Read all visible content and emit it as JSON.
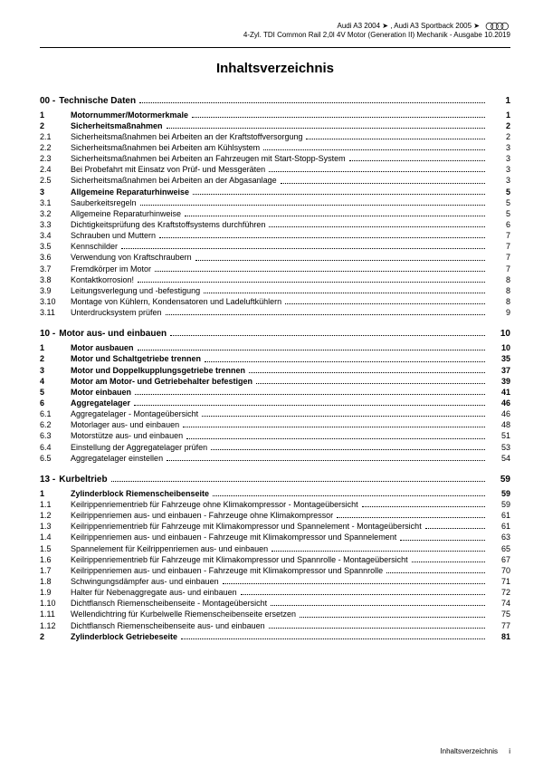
{
  "header": {
    "line1": "Audi A3 2004 ➤ , Audi A3 Sportback 2005 ➤",
    "line2": "4-Zyl. TDI Common Rail 2,0l 4V Motor (Generation II) Mechanik - Ausgabe 10.2019"
  },
  "title": "Inhaltsverzeichnis",
  "footer": {
    "label": "Inhaltsverzeichnis",
    "page": "i"
  },
  "sections": [
    {
      "head_num": "00 -",
      "head_title": "Technische Daten",
      "head_page": "1",
      "items": [
        {
          "n": "1",
          "t": "Motornummer/Motormerkmale",
          "p": "1",
          "b": true
        },
        {
          "n": "2",
          "t": "Sicherheitsmaßnahmen",
          "p": "2",
          "b": true
        },
        {
          "n": "2.1",
          "t": "Sicherheitsmaßnahmen bei Arbeiten an der Kraftstoffversorgung",
          "p": "2"
        },
        {
          "n": "2.2",
          "t": "Sicherheitsmaßnahmen bei Arbeiten am Kühlsystem",
          "p": "3"
        },
        {
          "n": "2.3",
          "t": "Sicherheitsmaßnahmen bei Arbeiten an Fahrzeugen mit Start-Stopp-System",
          "p": "3"
        },
        {
          "n": "2.4",
          "t": "Bei Probefahrt mit Einsatz von Prüf- und Messgeräten",
          "p": "3"
        },
        {
          "n": "2.5",
          "t": "Sicherheitsmaßnahmen bei Arbeiten an der Abgasanlage",
          "p": "3"
        },
        {
          "n": "3",
          "t": "Allgemeine Reparaturhinweise",
          "p": "5",
          "b": true
        },
        {
          "n": "3.1",
          "t": "Sauberkeitsregeln",
          "p": "5"
        },
        {
          "n": "3.2",
          "t": "Allgemeine Reparaturhinweise",
          "p": "5"
        },
        {
          "n": "3.3",
          "t": "Dichtigkeitsprüfung des Kraftstoffsystems durchführen",
          "p": "6"
        },
        {
          "n": "3.4",
          "t": "Schrauben und Muttern",
          "p": "7"
        },
        {
          "n": "3.5",
          "t": "Kennschilder",
          "p": "7"
        },
        {
          "n": "3.6",
          "t": "Verwendung von Kraftschraubern",
          "p": "7"
        },
        {
          "n": "3.7",
          "t": "Fremdkörper im Motor",
          "p": "7"
        },
        {
          "n": "3.8",
          "t": "Kontaktkorrosion!",
          "p": "8"
        },
        {
          "n": "3.9",
          "t": "Leitungsverlegung und -befestigung",
          "p": "8"
        },
        {
          "n": "3.10",
          "t": "Montage von Kühlern, Kondensatoren und Ladeluftkühlern",
          "p": "8"
        },
        {
          "n": "3.11",
          "t": "Unterdrucksystem prüfen",
          "p": "9"
        }
      ]
    },
    {
      "head_num": "10 -",
      "head_title": "Motor aus- und einbauen",
      "head_page": "10",
      "items": [
        {
          "n": "1",
          "t": "Motor ausbauen",
          "p": "10",
          "b": true
        },
        {
          "n": "2",
          "t": "Motor und Schaltgetriebe trennen",
          "p": "35",
          "b": true
        },
        {
          "n": "3",
          "t": "Motor und Doppelkupplungsgetriebe trennen",
          "p": "37",
          "b": true
        },
        {
          "n": "4",
          "t": "Motor am Motor- und Getriebehalter befestigen",
          "p": "39",
          "b": true
        },
        {
          "n": "5",
          "t": "Motor einbauen",
          "p": "41",
          "b": true
        },
        {
          "n": "6",
          "t": "Aggregatelager",
          "p": "46",
          "b": true
        },
        {
          "n": "6.1",
          "t": "Aggregatelager - Montageübersicht",
          "p": "46"
        },
        {
          "n": "6.2",
          "t": "Motorlager aus- und einbauen",
          "p": "48"
        },
        {
          "n": "6.3",
          "t": "Motorstütze aus- und einbauen",
          "p": "51"
        },
        {
          "n": "6.4",
          "t": "Einstellung der Aggregatelager prüfen",
          "p": "53"
        },
        {
          "n": "6.5",
          "t": "Aggregatelager einstellen",
          "p": "54"
        }
      ]
    },
    {
      "head_num": "13 -",
      "head_title": "Kurbeltrieb",
      "head_page": "59",
      "items": [
        {
          "n": "1",
          "t": "Zylinderblock Riemenscheibenseite",
          "p": "59",
          "b": true
        },
        {
          "n": "1.1",
          "t": "Keilrippenriementrieb für Fahrzeuge ohne Klimakompressor - Montageübersicht",
          "p": "59"
        },
        {
          "n": "1.2",
          "t": "Keilrippenriemen aus- und einbauen - Fahrzeuge ohne Klimakompressor",
          "p": "61"
        },
        {
          "n": "1.3",
          "t": "Keilrippenriementrieb für Fahrzeuge mit Klimakompressor und Spannelement - Montageübersicht",
          "p": "61",
          "wrap": true
        },
        {
          "n": "1.4",
          "t": "Keilrippenriemen aus- und einbauen - Fahrzeuge mit Klimakompressor und Spannelement",
          "p": "63",
          "wrap": true
        },
        {
          "n": "1.5",
          "t": "Spannelement für Keilrippenriemen aus- und einbauen",
          "p": "65"
        },
        {
          "n": "1.6",
          "t": "Keilrippenriementrieb für Fahrzeuge mit Klimakompressor und Spannrolle - Montageübersicht",
          "p": "67",
          "wrap": true
        },
        {
          "n": "1.7",
          "t": "Keilrippenriemen aus- und einbauen - Fahrzeuge mit Klimakompressor und Spannrolle",
          "p": "70"
        },
        {
          "n": "1.8",
          "t": "Schwingungsdämpfer aus- und einbauen",
          "p": "71"
        },
        {
          "n": "1.9",
          "t": "Halter für Nebenaggregate aus- und einbauen",
          "p": "72"
        },
        {
          "n": "1.10",
          "t": "Dichtflansch Riemenscheibenseite - Montageübersicht",
          "p": "74"
        },
        {
          "n": "1.11",
          "t": "Wellendichtring für Kurbelwelle Riemenscheibenseite ersetzen",
          "p": "75"
        },
        {
          "n": "1.12",
          "t": "Dichtflansch Riemenscheibenseite aus- und einbauen",
          "p": "77"
        },
        {
          "n": "2",
          "t": "Zylinderblock Getriebeseite",
          "p": "81",
          "b": true
        }
      ]
    }
  ]
}
